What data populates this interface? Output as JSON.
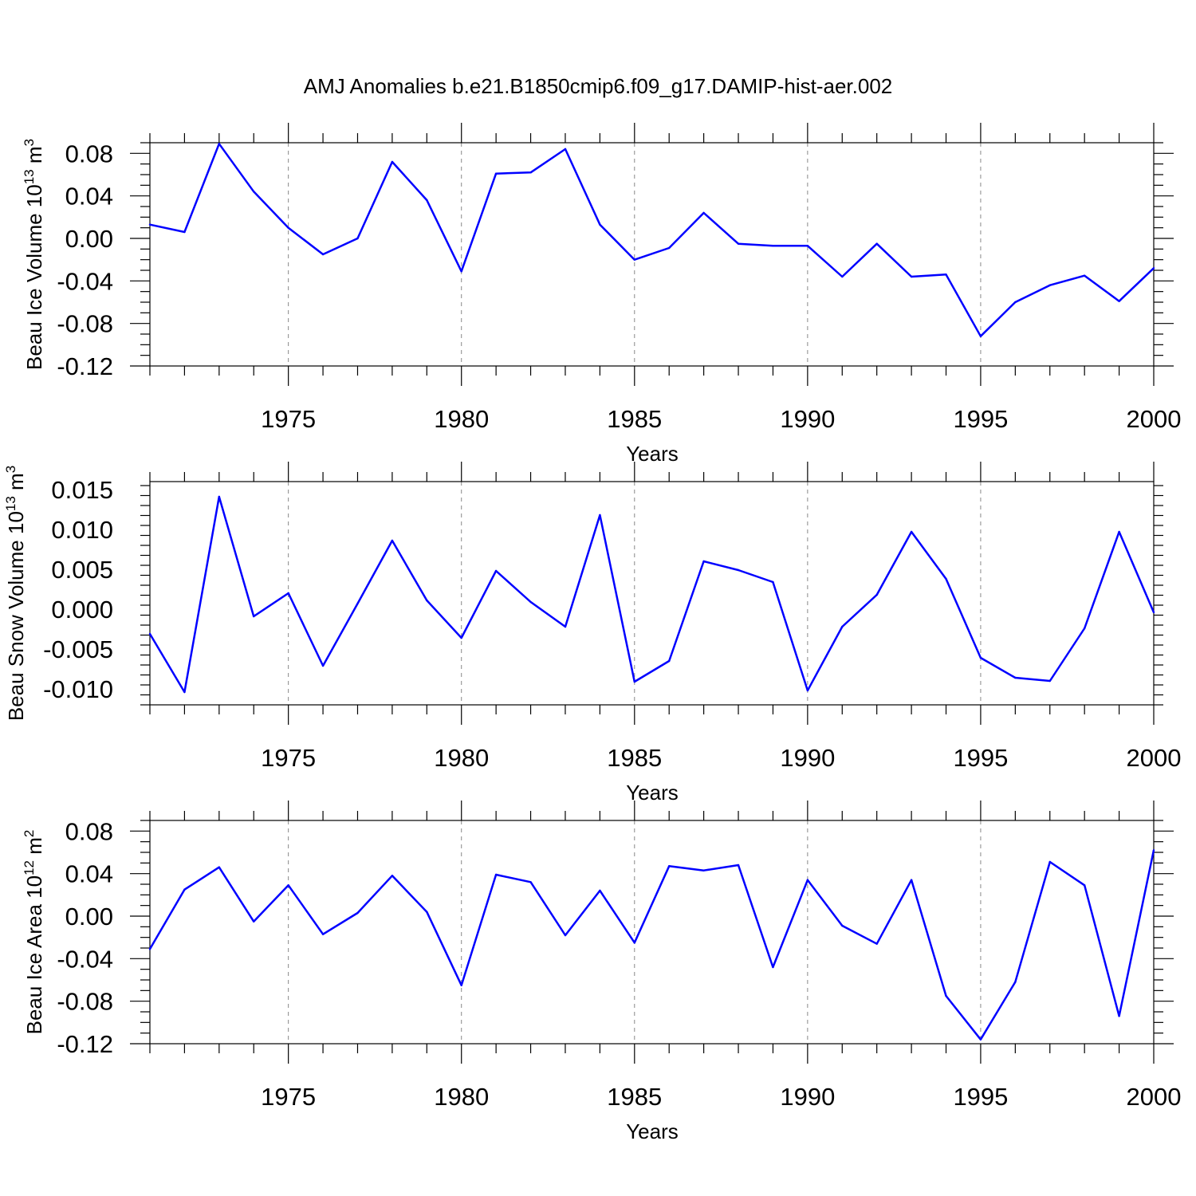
{
  "figure_title": "AMJ Anomalies b.e21.B1850cmip6.f09_g17.DAMIP-hist-aer.002",
  "chart_data": [
    {
      "type": "line",
      "ylabel": "Beau Ice Volume",
      "yunit_base": "10",
      "yunit_exp": "13",
      "yunit_rest": "m",
      "yunit_rest_exp": "3",
      "xlabel": "Years",
      "xlim": [
        1971,
        2000
      ],
      "ylim": [
        -0.12,
        0.09
      ],
      "xticks": [
        1975,
        1980,
        1985,
        1990,
        1995,
        2000
      ],
      "yticks": [
        -0.12,
        -0.08,
        -0.04,
        0.0,
        0.04,
        0.08
      ],
      "ytick_labels": [
        "-0.12",
        "-0.08",
        "-0.04",
        "0.00",
        "0.04",
        "0.08"
      ],
      "grid": "vertical dashed at major x ticks",
      "line_color": "#0000ff",
      "x": [
        1971,
        1972,
        1973,
        1974,
        1975,
        1976,
        1977,
        1978,
        1979,
        1980,
        1981,
        1982,
        1983,
        1984,
        1985,
        1986,
        1987,
        1988,
        1989,
        1990,
        1991,
        1992,
        1993,
        1994,
        1995,
        1996,
        1997,
        1998,
        1999,
        2000
      ],
      "values": [
        0.013,
        0.006,
        0.089,
        0.044,
        0.01,
        -0.015,
        0.0,
        0.072,
        0.036,
        -0.031,
        0.061,
        0.062,
        0.084,
        0.013,
        -0.02,
        -0.009,
        0.024,
        -0.005,
        -0.007,
        -0.007,
        -0.036,
        -0.005,
        -0.036,
        -0.034,
        -0.092,
        -0.06,
        -0.044,
        -0.035,
        -0.059,
        -0.028
      ]
    },
    {
      "type": "line",
      "ylabel": "Beau Snow Volume",
      "yunit_base": "10",
      "yunit_exp": "13",
      "yunit_rest": "m",
      "yunit_rest_exp": "3",
      "xlabel": "Years",
      "xlim": [
        1971,
        2000
      ],
      "ylim": [
        -0.012,
        0.016
      ],
      "xticks": [
        1975,
        1980,
        1985,
        1990,
        1995,
        2000
      ],
      "yticks": [
        -0.01,
        -0.005,
        0.0,
        0.005,
        0.01,
        0.015
      ],
      "ytick_labels": [
        "-0.010",
        "-0.005",
        "0.000",
        "0.005",
        "0.010",
        "0.015"
      ],
      "grid": "vertical dashed at major x ticks",
      "line_color": "#0000ff",
      "x": [
        1971,
        1972,
        1973,
        1974,
        1975,
        1976,
        1977,
        1978,
        1979,
        1980,
        1981,
        1982,
        1983,
        1984,
        1985,
        1986,
        1987,
        1988,
        1989,
        1990,
        1991,
        1992,
        1993,
        1994,
        1995,
        1996,
        1997,
        1998,
        1999,
        2000
      ],
      "values": [
        -0.0031,
        -0.0104,
        0.0141,
        -0.0009,
        0.002,
        -0.0071,
        0.0007,
        0.0086,
        0.0011,
        -0.0036,
        0.0048,
        0.0009,
        -0.0022,
        0.0118,
        -0.0091,
        -0.0065,
        0.006,
        0.0049,
        0.0034,
        -0.0102,
        -0.0022,
        0.0018,
        0.0097,
        0.0038,
        -0.0061,
        -0.0086,
        -0.009,
        -0.0024,
        0.0097,
        -0.0004
      ]
    },
    {
      "type": "line",
      "ylabel": "Beau Ice Area",
      "yunit_base": "10",
      "yunit_exp": "12",
      "yunit_rest": "m",
      "yunit_rest_exp": "2",
      "xlabel": "Years",
      "xlim": [
        1971,
        2000
      ],
      "ylim": [
        -0.12,
        0.09
      ],
      "xticks": [
        1975,
        1980,
        1985,
        1990,
        1995,
        2000
      ],
      "yticks": [
        -0.12,
        -0.08,
        -0.04,
        0.0,
        0.04,
        0.08
      ],
      "ytick_labels": [
        "-0.12",
        "-0.08",
        "-0.04",
        "0.00",
        "0.04",
        "0.08"
      ],
      "grid": "vertical dashed at major x ticks",
      "line_color": "#0000ff",
      "x": [
        1971,
        1972,
        1973,
        1974,
        1975,
        1976,
        1977,
        1978,
        1979,
        1980,
        1981,
        1982,
        1983,
        1984,
        1985,
        1986,
        1987,
        1988,
        1989,
        1990,
        1991,
        1992,
        1993,
        1994,
        1995,
        1996,
        1997,
        1998,
        1999,
        2000
      ],
      "values": [
        -0.031,
        0.025,
        0.046,
        -0.005,
        0.029,
        -0.017,
        0.003,
        0.038,
        0.004,
        -0.065,
        0.039,
        0.032,
        -0.018,
        0.024,
        -0.025,
        0.047,
        0.043,
        0.048,
        -0.048,
        0.034,
        -0.009,
        -0.026,
        0.034,
        -0.075,
        -0.116,
        -0.062,
        0.051,
        0.029,
        -0.094,
        0.062
      ]
    }
  ]
}
